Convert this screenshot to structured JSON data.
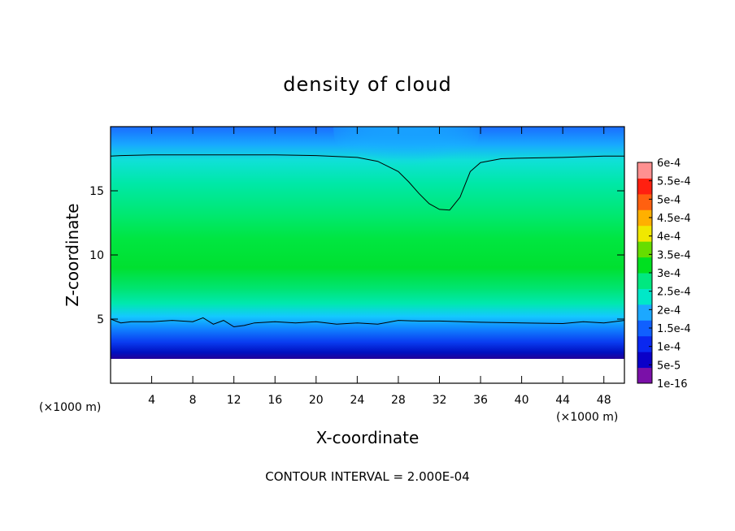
{
  "chart_data": {
    "type": "heatmap",
    "title": "density of cloud",
    "xlabel": "X-coordinate",
    "ylabel": "Z-coordinate",
    "x_unit": "(×1000 m)",
    "z_unit": "(×1000 m)",
    "xlim": [
      0,
      50
    ],
    "ylim": [
      0,
      20
    ],
    "x_ticks": [
      4,
      8,
      12,
      16,
      20,
      24,
      28,
      32,
      36,
      40,
      44,
      48
    ],
    "y_ticks": [
      5,
      10,
      15
    ],
    "colorbar": {
      "levels": [
        "1e-16",
        "5e-5",
        "1e-4",
        "1.5e-4",
        "2e-4",
        "2.5e-4",
        "3e-4",
        "3.5e-4",
        "4e-4",
        "4.5e-4",
        "5e-4",
        "5.5e-4",
        "6e-4"
      ],
      "colors": [
        "#7a10a8",
        "#0a00c8",
        "#0a28f0",
        "#1060ff",
        "#1ca8ff",
        "#00e8c8",
        "#00e880",
        "#00e020",
        "#66dd00",
        "#f0e800",
        "#ffb000",
        "#ff6010",
        "#ff2010",
        "#ff9090"
      ]
    },
    "contour_interval_text": "CONTOUR INTERVAL = 2.000E-04",
    "contour_level": 0.0002,
    "contours": [
      {
        "x": [
          0,
          1,
          4,
          8,
          12,
          16,
          20,
          24,
          26,
          28,
          29,
          30,
          31,
          32,
          33,
          34,
          35,
          36,
          38,
          40,
          44,
          48,
          50
        ],
        "y": [
          17.7,
          17.75,
          17.8,
          17.8,
          17.8,
          17.8,
          17.75,
          17.6,
          17.3,
          16.5,
          15.7,
          14.8,
          14.0,
          13.55,
          13.5,
          14.5,
          16.5,
          17.2,
          17.5,
          17.55,
          17.6,
          17.7,
          17.7
        ]
      },
      {
        "x": [
          0,
          1,
          2,
          4,
          6,
          8,
          9,
          10,
          11,
          12,
          13,
          14,
          16,
          18,
          20,
          22,
          24,
          26,
          28,
          30,
          32,
          36,
          40,
          44,
          46,
          48,
          50
        ],
        "y": [
          5.0,
          4.7,
          4.8,
          4.8,
          4.9,
          4.8,
          5.1,
          4.6,
          4.9,
          4.4,
          4.5,
          4.7,
          4.8,
          4.7,
          4.8,
          4.6,
          4.7,
          4.6,
          4.9,
          4.85,
          4.85,
          4.75,
          4.7,
          4.65,
          4.8,
          4.7,
          4.9
        ]
      }
    ]
  }
}
